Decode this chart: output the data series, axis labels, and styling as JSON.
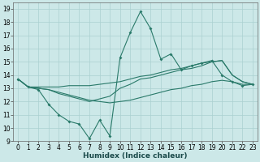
{
  "xlabel": "Humidex (Indice chaleur)",
  "xlim": [
    -0.5,
    23.5
  ],
  "ylim": [
    9,
    19.5
  ],
  "xticks": [
    0,
    1,
    2,
    3,
    4,
    5,
    6,
    7,
    8,
    9,
    10,
    11,
    12,
    13,
    14,
    15,
    16,
    17,
    18,
    19,
    20,
    21,
    22,
    23
  ],
  "yticks": [
    9,
    10,
    11,
    12,
    13,
    14,
    15,
    16,
    17,
    18,
    19
  ],
  "bg_color": "#cce8e8",
  "grid_color": "#aad0d0",
  "line_color": "#2a7a6a",
  "line1_x": [
    0,
    1,
    2,
    3,
    4,
    5,
    6,
    7,
    8,
    9,
    10,
    11,
    12,
    13,
    14,
    15,
    16,
    17,
    18,
    19,
    20,
    21,
    22,
    23
  ],
  "line1_y": [
    13.7,
    13.1,
    12.9,
    11.8,
    11.0,
    10.5,
    10.3,
    9.2,
    10.6,
    9.4,
    15.3,
    17.2,
    18.8,
    17.5,
    15.2,
    15.6,
    14.4,
    14.7,
    14.9,
    15.1,
    14.0,
    13.5,
    13.2,
    13.3
  ],
  "line2_x": [
    0,
    1,
    2,
    3,
    4,
    5,
    6,
    7,
    8,
    9,
    10,
    11,
    12,
    13,
    14,
    15,
    16,
    17,
    18,
    19,
    20,
    21,
    22,
    23
  ],
  "line2_y": [
    13.7,
    13.1,
    13.0,
    12.9,
    12.6,
    12.4,
    12.2,
    12.0,
    12.2,
    12.4,
    13.0,
    13.3,
    13.7,
    13.8,
    14.0,
    14.2,
    14.4,
    14.5,
    14.7,
    15.0,
    15.1,
    14.0,
    13.5,
    13.3
  ],
  "line3_x": [
    0,
    1,
    2,
    3,
    4,
    5,
    6,
    7,
    8,
    9,
    10,
    11,
    12,
    13,
    14,
    15,
    16,
    17,
    18,
    19,
    20,
    21,
    22,
    23
  ],
  "line3_y": [
    13.7,
    13.1,
    13.1,
    13.1,
    13.1,
    13.2,
    13.2,
    13.2,
    13.3,
    13.4,
    13.5,
    13.7,
    13.9,
    14.0,
    14.2,
    14.4,
    14.5,
    14.7,
    14.9,
    15.0,
    15.1,
    14.0,
    13.5,
    13.3
  ],
  "line4_x": [
    0,
    1,
    2,
    3,
    4,
    5,
    6,
    7,
    8,
    9,
    10,
    11,
    12,
    13,
    14,
    15,
    16,
    17,
    18,
    19,
    20,
    21,
    22,
    23
  ],
  "line4_y": [
    13.7,
    13.1,
    13.0,
    12.9,
    12.7,
    12.5,
    12.3,
    12.1,
    12.0,
    11.9,
    12.0,
    12.1,
    12.3,
    12.5,
    12.7,
    12.9,
    13.0,
    13.2,
    13.3,
    13.5,
    13.6,
    13.5,
    13.3,
    13.3
  ],
  "tick_fontsize": 5.5,
  "xlabel_fontsize": 6.5
}
